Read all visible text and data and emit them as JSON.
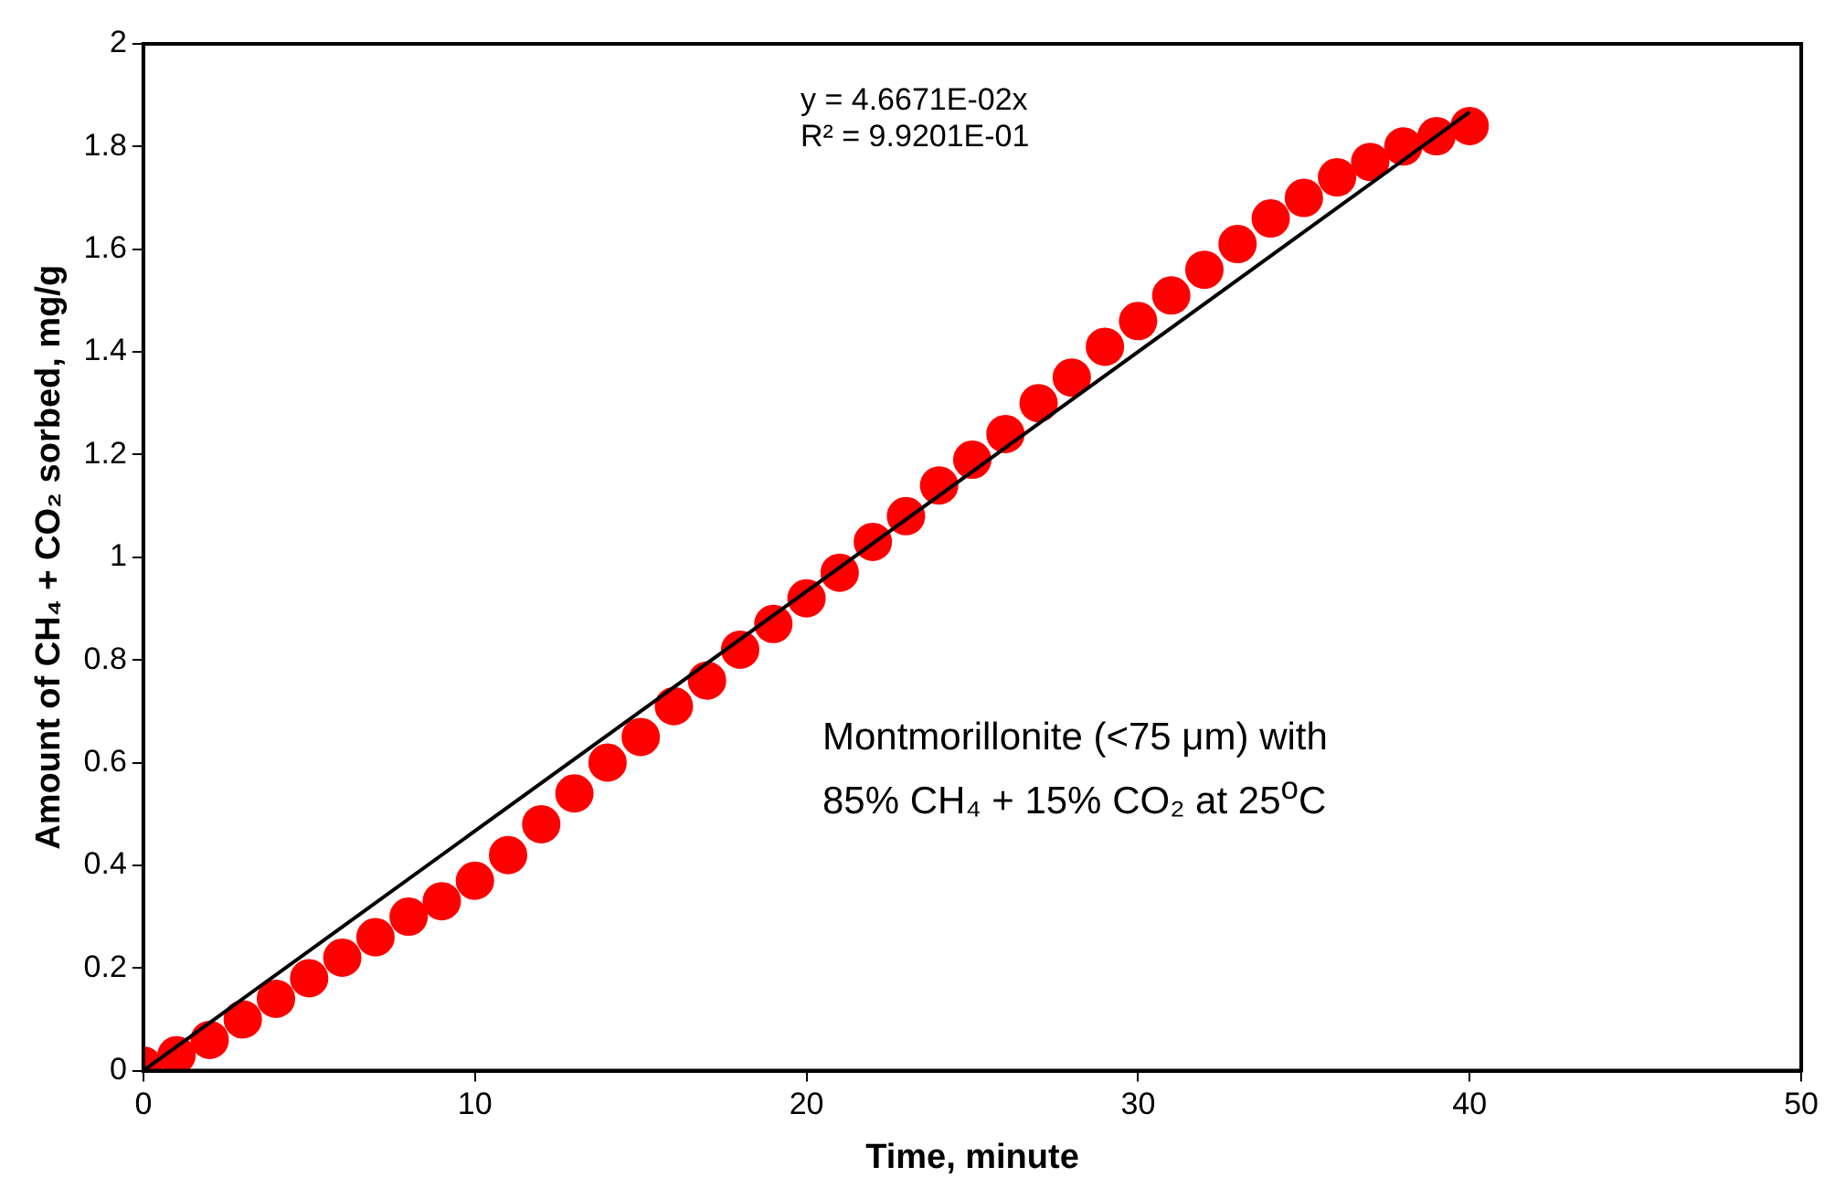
{
  "chart_data": {
    "type": "scatter",
    "xlabel": "Time, minute",
    "ylabel": "Amount of CH₄ + CO₂ sorbed, mg/g",
    "x": [
      0,
      1,
      2,
      3,
      4,
      5,
      6,
      7,
      8,
      9,
      10,
      11,
      12,
      13,
      14,
      15,
      16,
      17,
      18,
      19,
      20,
      21,
      22,
      23,
      24,
      25,
      26,
      27,
      28,
      29,
      30,
      31,
      32,
      33,
      34,
      35,
      36,
      37,
      38,
      39,
      40
    ],
    "series": [
      {
        "type": "scatter",
        "color": "#ff0000",
        "marker": "circle",
        "values": [
          0.01,
          0.03,
          0.06,
          0.1,
          0.14,
          0.18,
          0.22,
          0.26,
          0.3,
          0.33,
          0.37,
          0.42,
          0.48,
          0.54,
          0.6,
          0.65,
          0.71,
          0.76,
          0.82,
          0.87,
          0.92,
          0.97,
          1.03,
          1.08,
          1.14,
          1.19,
          1.24,
          1.3,
          1.35,
          1.41,
          1.46,
          1.51,
          1.56,
          1.61,
          1.66,
          1.7,
          1.74,
          1.77,
          1.8,
          1.82,
          1.84
        ]
      },
      {
        "type": "line",
        "color": "#000000",
        "marker": "none",
        "line_style": "solid",
        "x": [
          0,
          40
        ],
        "values": [
          0,
          1.867
        ]
      }
    ],
    "annotations": [
      "y = 4.6671E-02x",
      "R² = 9.9201E-01",
      "Montmorillonite (<75 μm) with",
      "85% CH₄ + 15% CO₂ at 25$^{o}$C"
    ],
    "xlim": [
      0,
      50
    ],
    "xticks": [
      0,
      10,
      20,
      30,
      40,
      50
    ],
    "ylim": [
      0,
      2
    ],
    "yticks": [
      0,
      0.2,
      0.4,
      0.6,
      0.8,
      1,
      1.2,
      1.4,
      1.6,
      1.8,
      2
    ],
    "grid": false,
    "legend": false
  }
}
